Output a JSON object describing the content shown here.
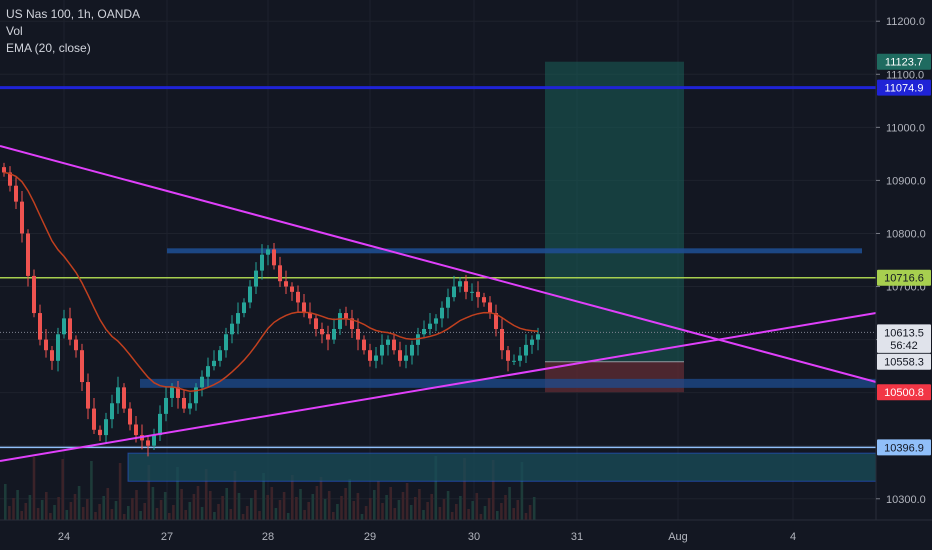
{
  "legend": {
    "symbol": "US Nas 100, 1h, OANDA",
    "volume": "Vol",
    "ema": "EMA (20, close)"
  },
  "price_axis": {
    "ticks": [
      "11200.0",
      "11100.0",
      "11000.0",
      "10900.0",
      "10800.0",
      "10700.0",
      "10600.0",
      "10300.0"
    ],
    "tick_values": [
      11200,
      11100,
      11000,
      10900,
      10800,
      10700,
      10600,
      10300
    ],
    "tags": [
      {
        "label": "11123.7",
        "value": 11123.7,
        "bg": "#1f6b60",
        "fg": "#ffffff"
      },
      {
        "label": "11074.9",
        "value": 11074.9,
        "bg": "#1f23d6",
        "fg": "#ffffff"
      },
      {
        "label": "10716.6",
        "value": 10716.6,
        "bg": "#a7cf4f",
        "fg": "#131722"
      },
      {
        "label": "10613.5",
        "value": 10613.5,
        "bg": "#e0e3eb",
        "fg": "#131722"
      },
      {
        "label": "56:42",
        "value": 10590,
        "bg": "#e0e3eb",
        "fg": "#131722"
      },
      {
        "label": "10558.3",
        "value": 10558.3,
        "bg": "#e0e3eb",
        "fg": "#131722"
      },
      {
        "label": "10500.8",
        "value": 10500.8,
        "bg": "#f23645",
        "fg": "#ffffff"
      },
      {
        "label": "10396.9",
        "value": 10396.9,
        "bg": "#90bff9",
        "fg": "#131722"
      }
    ]
  },
  "time_axis": {
    "labels": [
      "24",
      "27",
      "28",
      "29",
      "30",
      "31",
      "Aug",
      "4"
    ]
  },
  "colors": {
    "background": "#131722",
    "candle_up": "#26a69a",
    "candle_down": "#ef5350",
    "ema": "#c1401f",
    "trendline": "#e040fb",
    "resistance": "#a7cf4f",
    "level_blue": "#1f23d6",
    "level_light": "#90bff9",
    "zone": "#1e4c8f",
    "profit_zone": "#1a5f58",
    "loss_zone": "#5b2a33"
  },
  "chart_data": {
    "type": "candlestick",
    "symbol": "US Nas 100",
    "interval": "1h",
    "source": "OANDA",
    "indicator": "EMA (20, close)",
    "ylim": [
      10260,
      11240
    ],
    "last_price": 10613.5,
    "levels": [
      11074.9,
      10716.6,
      10396.9
    ],
    "position": {
      "entry": 10558.3,
      "target": 11123.7,
      "stop": 10500.8
    },
    "closes": [
      10915,
      10890,
      10860,
      10800,
      10720,
      10650,
      10600,
      10580,
      10560,
      10610,
      10640,
      10600,
      10580,
      10520,
      10470,
      10430,
      10420,
      10450,
      10480,
      10510,
      10470,
      10440,
      10420,
      10410,
      10400,
      10420,
      10460,
      10490,
      10510,
      10490,
      10470,
      10480,
      10510,
      10530,
      10550,
      10560,
      10580,
      10610,
      10630,
      10650,
      10670,
      10700,
      10730,
      10760,
      10770,
      10740,
      10710,
      10700,
      10690,
      10670,
      10650,
      10640,
      10620,
      10610,
      10600,
      10620,
      10650,
      10640,
      10620,
      10600,
      10580,
      10560,
      10570,
      10590,
      10600,
      10580,
      10560,
      10570,
      10590,
      10610,
      10620,
      10630,
      10640,
      10660,
      10680,
      10700,
      10710,
      10690,
      10690,
      10680,
      10670,
      10650,
      10620,
      10580,
      10560,
      10560,
      10570,
      10590,
      10600,
      10610
    ]
  }
}
